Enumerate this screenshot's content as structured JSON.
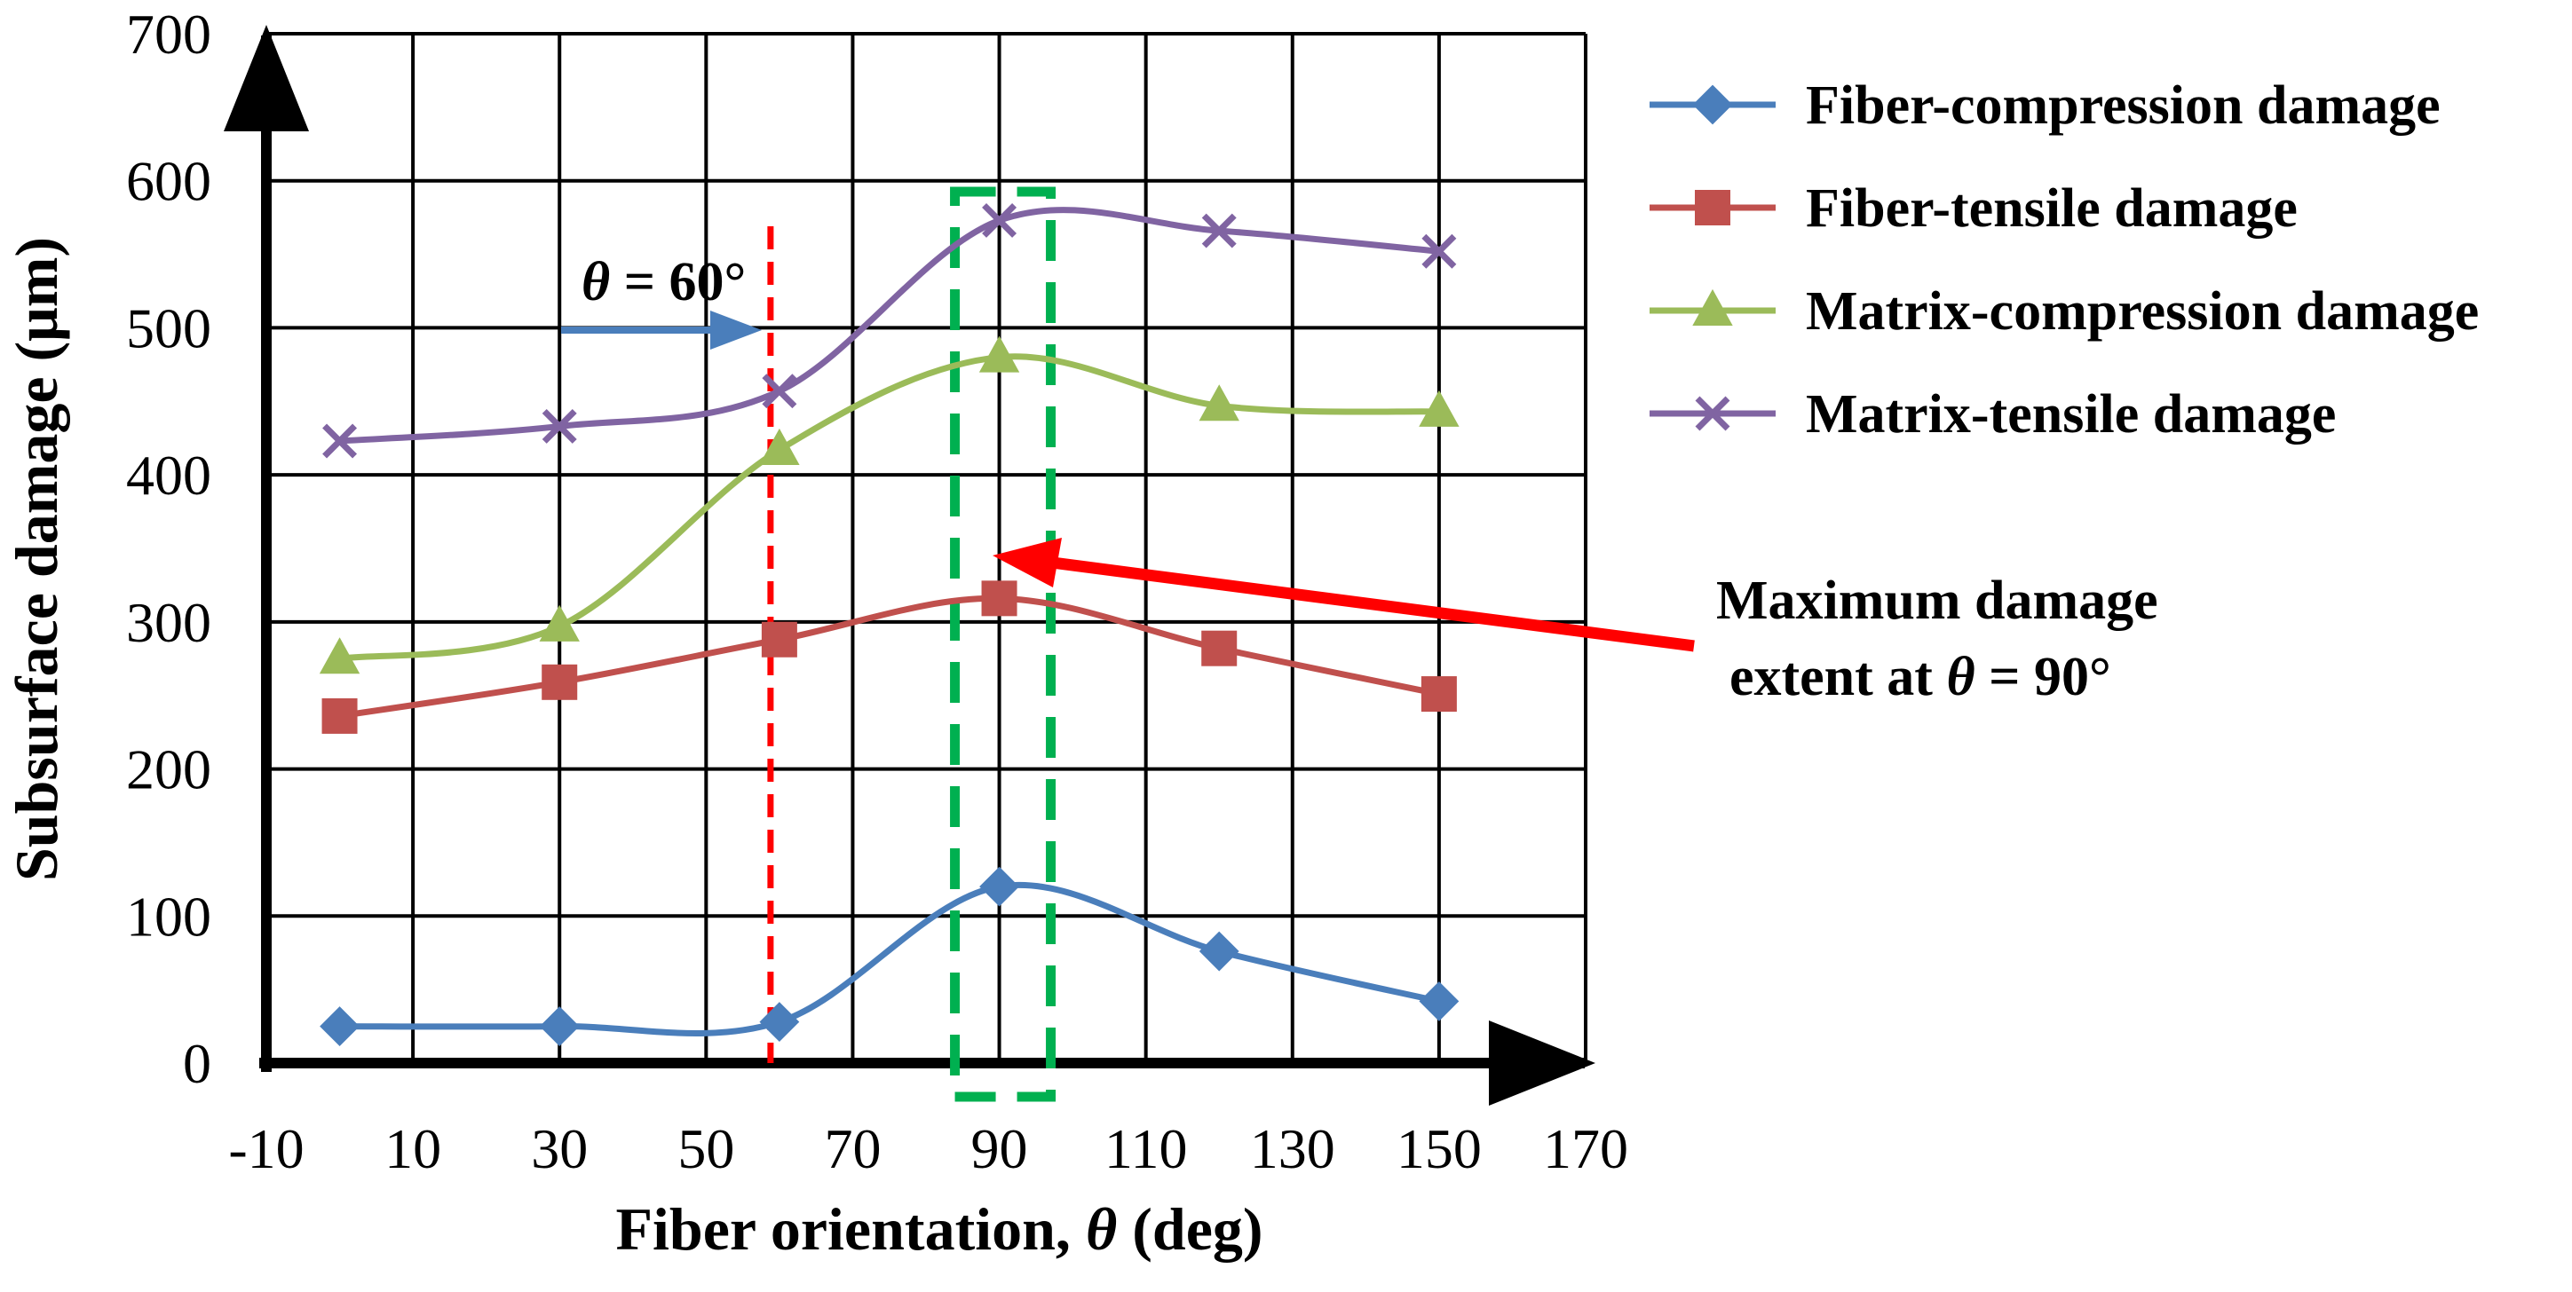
{
  "chart_data": {
    "type": "line",
    "title": "",
    "xlabel_parts": [
      "Fiber orientation, ",
      "θ",
      " (deg)"
    ],
    "xlabel": "Fiber orientation, θ (deg)",
    "ylabel": "Subsurface damage (μm)",
    "xlim": [
      -10,
      170
    ],
    "ylim": [
      0,
      700
    ],
    "x_ticks": [
      "-10",
      "10",
      "30",
      "50",
      "70",
      "90",
      "110",
      "130",
      "150",
      "170"
    ],
    "y_ticks": [
      "0",
      "100",
      "200",
      "300",
      "400",
      "500",
      "600",
      "700"
    ],
    "grid": true,
    "legend_position": "right",
    "series": [
      {
        "name": "Fiber-compression damage",
        "color": "#4A7EBB",
        "marker": "diamond",
        "x": [
          0,
          30,
          60,
          90,
          120,
          150
        ],
        "values": [
          25,
          25,
          28,
          120,
          76,
          42
        ]
      },
      {
        "name": "Fiber-tensile damage",
        "color": "#C0504D",
        "marker": "square",
        "x": [
          0,
          30,
          60,
          90,
          120,
          150
        ],
        "values": [
          236,
          259,
          288,
          316,
          282,
          251
        ]
      },
      {
        "name": "Matrix-compression damage",
        "color": "#9BBB59",
        "marker": "triangle",
        "x": [
          0,
          30,
          60,
          90,
          120,
          150
        ],
        "values": [
          275,
          297,
          417,
          480,
          447,
          443
        ]
      },
      {
        "name": "Matrix-tensile damage",
        "color": "#8064A2",
        "marker": "x",
        "x": [
          0,
          30,
          60,
          90,
          120,
          150
        ],
        "values": [
          423,
          433,
          457,
          573,
          566,
          552
        ]
      }
    ],
    "annotations": {
      "theta60_parts": [
        "θ",
        " = 60°"
      ],
      "theta60": "θ = 60°",
      "theta60_x": 60,
      "max_line1": "Maximum damage",
      "max_line2_parts": [
        "extent at ",
        "θ",
        " = 90°"
      ],
      "max_line2": "extent at θ = 90°",
      "max_x": 90,
      "red_line_color": "#FF0000",
      "green_box_color": "#00B050",
      "blue_arrow_color": "#4A7EBB"
    }
  }
}
